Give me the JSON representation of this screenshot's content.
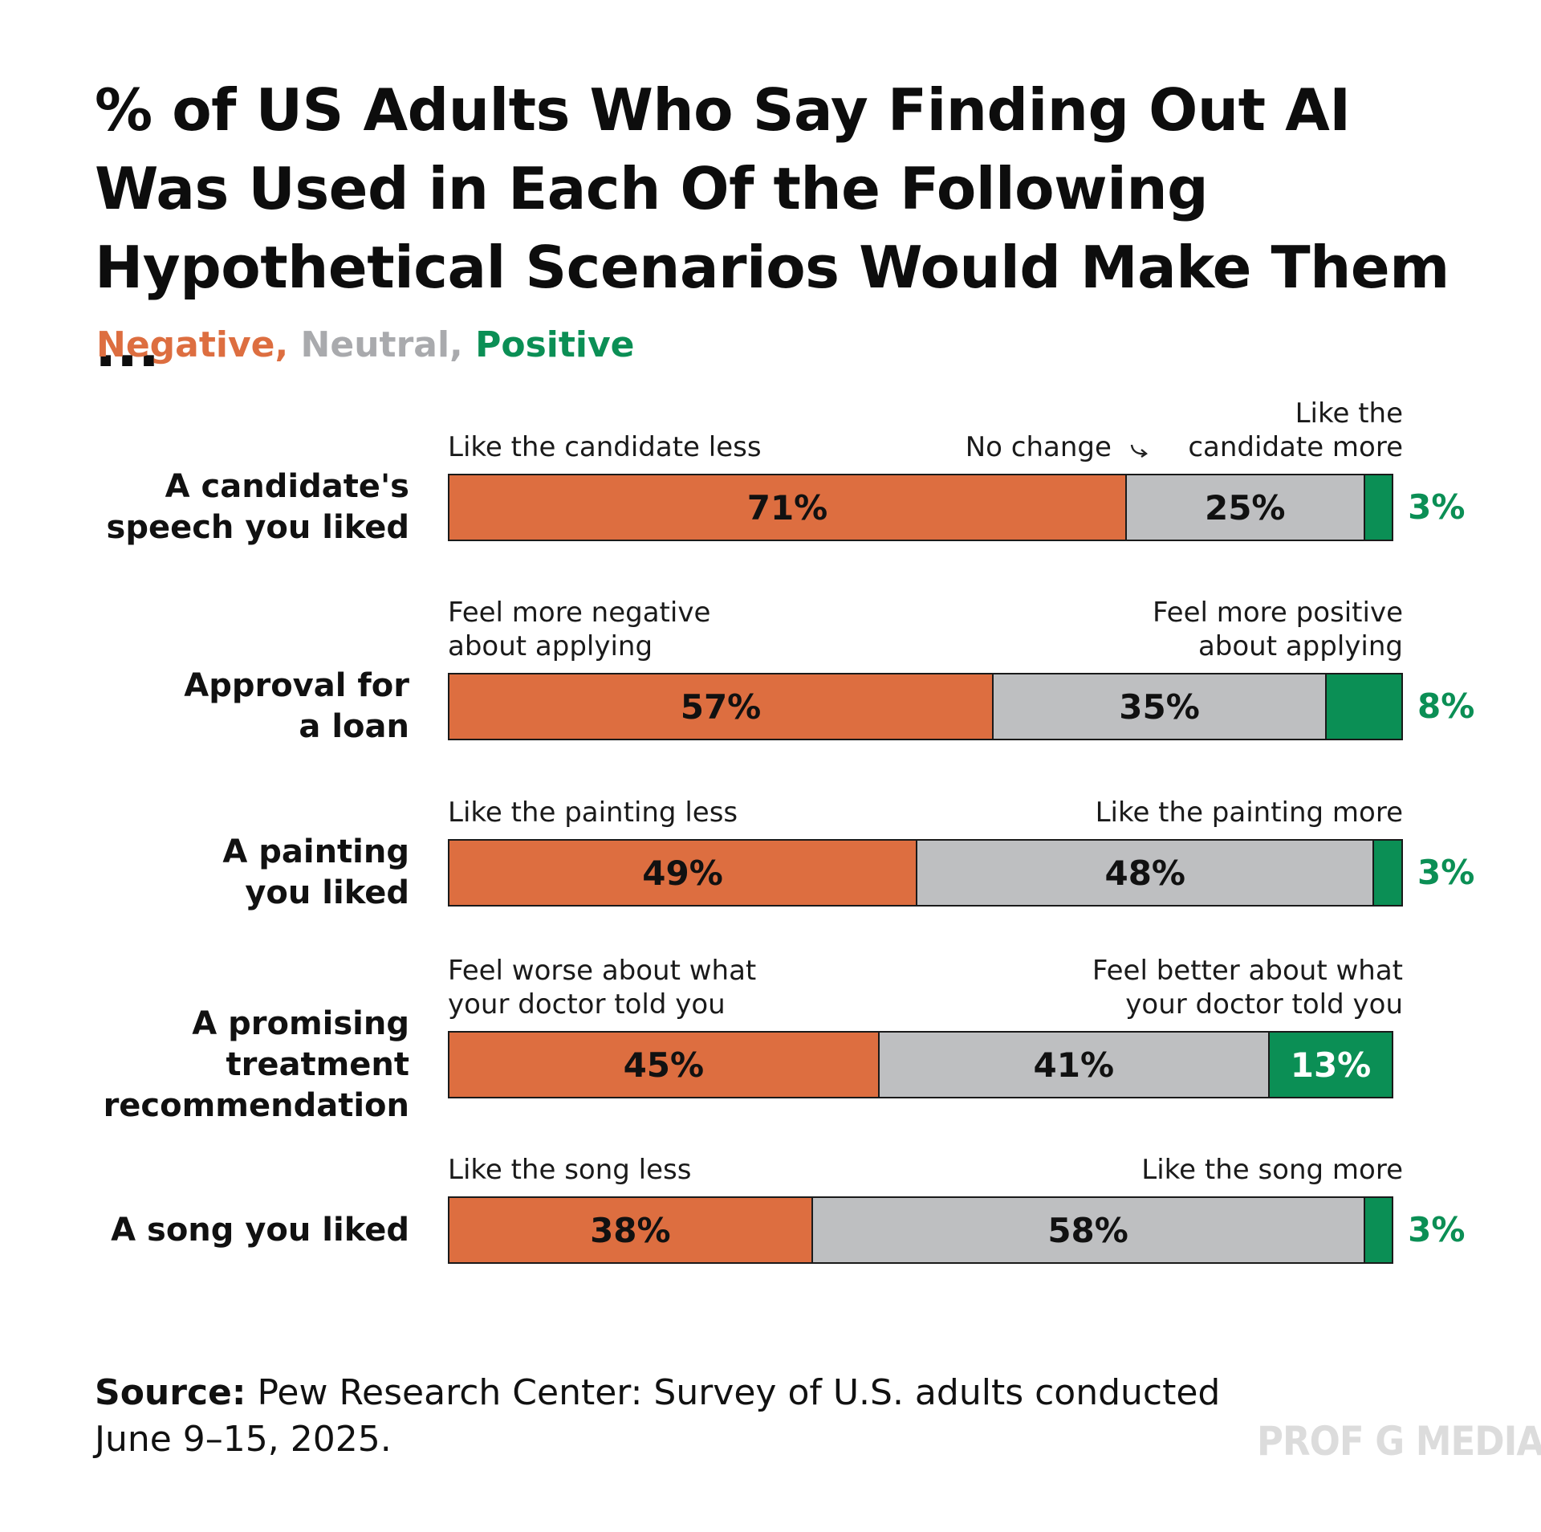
{
  "title": "% of US Adults Who Say Finding Out AI Was Used in Each Of the Following Hypothetical Scenarios Would Make Them ...",
  "legend": {
    "negative_label": "Negative,",
    "neutral_label": "Neutral,",
    "positive_label": "Positive"
  },
  "colors": {
    "negative": "#dd6e40",
    "neutral": "#bebfc1",
    "positive": "#0b8f55",
    "text": "#111111",
    "watermark": "#dcdcdc"
  },
  "neutral_annotation": "No change",
  "source": {
    "bold": "Source:",
    "text": " Pew Research Center: Survey of U.S. adults conducted June 9–15, 2025."
  },
  "watermark": "PROF G MEDIA",
  "chart_data": {
    "type": "bar",
    "stacked": true,
    "orientation": "horizontal",
    "title": "% of US Adults Who Say Finding Out AI Was Used in Each Of the Following Hypothetical Scenarios Would Make Them ...",
    "categories": [
      "A candidate's speech you liked",
      "Approval for a loan",
      "A painting you liked",
      "A promising treatment recommendation",
      "A song you liked"
    ],
    "series": [
      {
        "name": "Negative",
        "values": [
          71,
          57,
          49,
          45,
          38
        ]
      },
      {
        "name": "Neutral",
        "values": [
          25,
          35,
          48,
          41,
          58
        ]
      },
      {
        "name": "Positive",
        "values": [
          3,
          8,
          3,
          13,
          3
        ]
      }
    ],
    "rows": [
      {
        "label": "A candidate's\nspeech you liked",
        "negative": 71,
        "neutral": 25,
        "positive": 3,
        "negative_text": "71%",
        "neutral_text": "25%",
        "positive_text": "3%",
        "left_caption": "Like the candidate less",
        "right_caption": "Like the\ncandidate more",
        "show_no_change": true
      },
      {
        "label": "Approval for\na loan",
        "negative": 57,
        "neutral": 35,
        "positive": 8,
        "negative_text": "57%",
        "neutral_text": "35%",
        "positive_text": "8%",
        "left_caption": "Feel more negative\nabout applying",
        "right_caption": "Feel more positive\nabout applying",
        "show_no_change": false
      },
      {
        "label": "A painting\nyou liked",
        "negative": 49,
        "neutral": 48,
        "positive": 3,
        "negative_text": "49%",
        "neutral_text": "48%",
        "positive_text": "3%",
        "left_caption": "Like the painting less",
        "right_caption": "Like the painting more",
        "show_no_change": false
      },
      {
        "label": "A promising\ntreatment\nrecommendation",
        "negative": 45,
        "neutral": 41,
        "positive": 13,
        "negative_text": "45%",
        "neutral_text": "41%",
        "positive_text": "13%",
        "left_caption": "Feel worse about what\nyour doctor told you",
        "right_caption": "Feel better about what\nyour doctor told you",
        "show_no_change": false
      },
      {
        "label": "A song you liked",
        "negative": 38,
        "neutral": 58,
        "positive": 3,
        "negative_text": "38%",
        "neutral_text": "58%",
        "positive_text": "3%",
        "left_caption": "Like the song less",
        "right_caption": "Like the song more",
        "show_no_change": false
      }
    ],
    "xlabel": "",
    "ylabel": "",
    "xlim": [
      0,
      100
    ],
    "grid": false,
    "legend_position": "top-left"
  }
}
